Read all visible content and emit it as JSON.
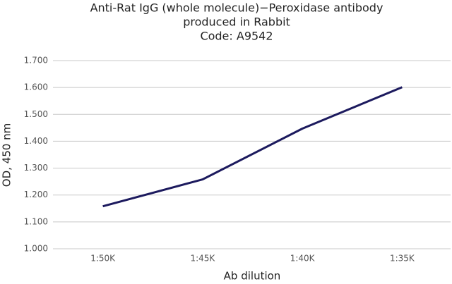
{
  "chart_data": {
    "type": "line",
    "title": [
      "Anti-Rat IgG (whole molecule)−Peroxidase antibody",
      "produced in Rabbit",
      "Code: A9542"
    ],
    "x_label": "Ab dilution",
    "y_label": "OD, 450 nm",
    "categories": [
      "1:50K",
      "1:45K",
      "1:40K",
      "1:35K"
    ],
    "series": [
      {
        "name": "A9542",
        "color": "#1c1a5e",
        "values": [
          1.158,
          1.258,
          1.447,
          1.601
        ]
      }
    ],
    "ylim": [
      1.0,
      1.7
    ],
    "yticks": [
      {
        "value": 1.0,
        "label": "1.000"
      },
      {
        "value": 1.1,
        "label": "1.100"
      },
      {
        "value": 1.2,
        "label": "1.200"
      },
      {
        "value": 1.3,
        "label": "1.300"
      },
      {
        "value": 1.4,
        "label": "1.400"
      },
      {
        "value": 1.5,
        "label": "1.500"
      },
      {
        "value": 1.6,
        "label": "1.600"
      },
      {
        "value": 1.7,
        "label": "1.700"
      }
    ],
    "grid": true
  }
}
